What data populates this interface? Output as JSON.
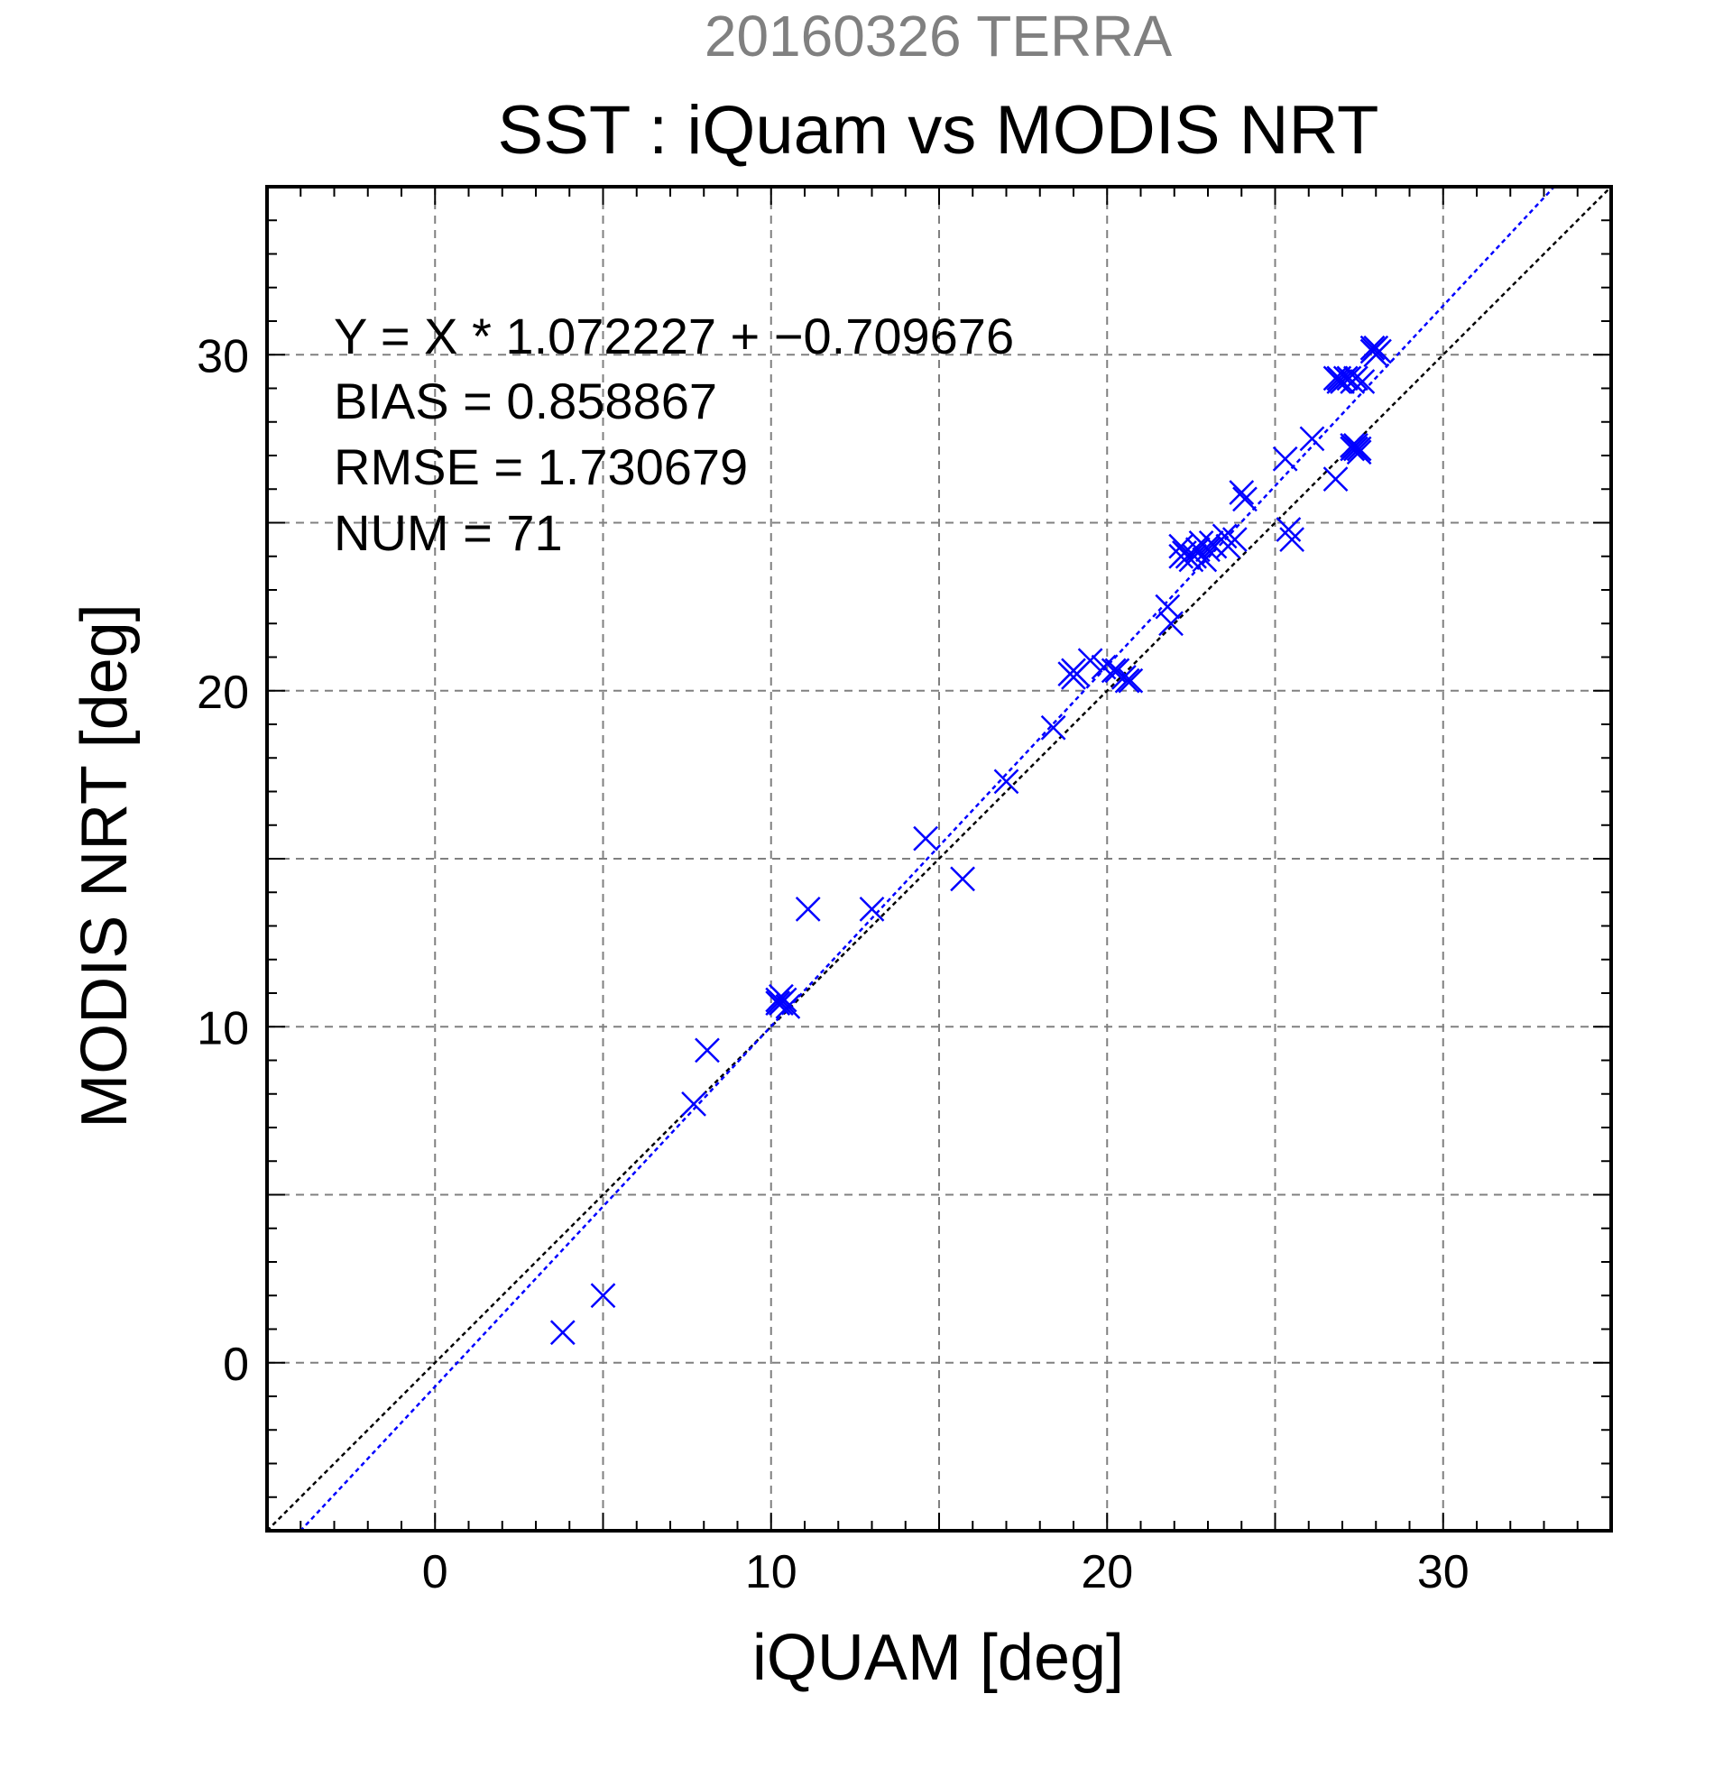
{
  "chart_data": {
    "type": "scatter",
    "subtitle": "20160326 TERRA",
    "title": "SST : iQuam vs MODIS NRT",
    "xlabel": "iQUAM [deg]",
    "ylabel": "MODIS NRT [deg]",
    "xlim": [
      -5,
      35
    ],
    "ylim": [
      -5,
      35
    ],
    "xticks": [
      0,
      10,
      20,
      30
    ],
    "yticks": [
      0,
      10,
      20,
      30
    ],
    "minor_step": 1,
    "grid": true,
    "stats": {
      "line1": "Y = X * 1.072227 + −0.709676",
      "line2": "BIAS = 0.858867",
      "line3": "RMSE = 1.730679",
      "line4": "NUM = 71"
    },
    "regression": {
      "slope": 1.072227,
      "intercept": -0.709676,
      "color": "#0000ff"
    },
    "identity_line": {
      "slope": 1,
      "intercept": 0,
      "color": "#000000"
    },
    "marker_color": "#0000ff",
    "points": [
      {
        "x": 3.8,
        "y": 0.9
      },
      {
        "x": 5.0,
        "y": 2.0
      },
      {
        "x": 7.7,
        "y": 7.7
      },
      {
        "x": 8.1,
        "y": 9.3
      },
      {
        "x": 10.2,
        "y": 10.8
      },
      {
        "x": 10.3,
        "y": 10.7
      },
      {
        "x": 10.4,
        "y": 10.8
      },
      {
        "x": 10.2,
        "y": 10.7
      },
      {
        "x": 10.5,
        "y": 10.6
      },
      {
        "x": 11.1,
        "y": 13.5
      },
      {
        "x": 13.0,
        "y": 13.5
      },
      {
        "x": 14.6,
        "y": 15.6
      },
      {
        "x": 15.7,
        "y": 14.4
      },
      {
        "x": 17.0,
        "y": 17.3
      },
      {
        "x": 18.4,
        "y": 18.9
      },
      {
        "x": 18.9,
        "y": 20.5
      },
      {
        "x": 19.0,
        "y": 20.4
      },
      {
        "x": 19.1,
        "y": 20.5
      },
      {
        "x": 19.5,
        "y": 20.9
      },
      {
        "x": 19.9,
        "y": 20.7
      },
      {
        "x": 20.2,
        "y": 20.6
      },
      {
        "x": 20.3,
        "y": 20.6
      },
      {
        "x": 20.6,
        "y": 20.3
      },
      {
        "x": 20.7,
        "y": 20.3
      },
      {
        "x": 21.8,
        "y": 22.5
      },
      {
        "x": 21.9,
        "y": 22.0
      },
      {
        "x": 22.2,
        "y": 24.0
      },
      {
        "x": 22.2,
        "y": 24.3
      },
      {
        "x": 22.4,
        "y": 24.0
      },
      {
        "x": 22.6,
        "y": 24.0
      },
      {
        "x": 22.7,
        "y": 24.2
      },
      {
        "x": 22.8,
        "y": 24.4
      },
      {
        "x": 22.9,
        "y": 23.9
      },
      {
        "x": 23.1,
        "y": 24.4
      },
      {
        "x": 23.2,
        "y": 24.3
      },
      {
        "x": 23.5,
        "y": 24.6
      },
      {
        "x": 23.6,
        "y": 24.3
      },
      {
        "x": 23.8,
        "y": 24.5
      },
      {
        "x": 24.0,
        "y": 25.9
      },
      {
        "x": 24.1,
        "y": 25.7
      },
      {
        "x": 25.3,
        "y": 26.9
      },
      {
        "x": 25.4,
        "y": 24.8
      },
      {
        "x": 25.5,
        "y": 24.5
      },
      {
        "x": 26.1,
        "y": 27.5
      },
      {
        "x": 26.8,
        "y": 26.3
      },
      {
        "x": 26.8,
        "y": 29.3
      },
      {
        "x": 26.9,
        "y": 29.3
      },
      {
        "x": 27.0,
        "y": 29.2
      },
      {
        "x": 27.1,
        "y": 29.3
      },
      {
        "x": 27.2,
        "y": 29.3
      },
      {
        "x": 27.3,
        "y": 29.2
      },
      {
        "x": 27.4,
        "y": 29.3
      },
      {
        "x": 27.6,
        "y": 29.2
      },
      {
        "x": 27.3,
        "y": 27.2
      },
      {
        "x": 27.4,
        "y": 27.2
      },
      {
        "x": 27.5,
        "y": 27.1
      },
      {
        "x": 27.4,
        "y": 27.3
      },
      {
        "x": 27.5,
        "y": 27.2
      },
      {
        "x": 27.9,
        "y": 30.1
      },
      {
        "x": 28.0,
        "y": 30.2
      },
      {
        "x": 28.1,
        "y": 30.1
      },
      {
        "x": 27.9,
        "y": 30.2
      },
      {
        "x": 28.0,
        "y": 30.0
      },
      {
        "x": 22.3,
        "y": 24.1
      },
      {
        "x": 22.5,
        "y": 23.9
      },
      {
        "x": 19.0,
        "y": 20.6
      },
      {
        "x": 20.5,
        "y": 20.4
      },
      {
        "x": 10.3,
        "y": 10.9
      },
      {
        "x": 23.0,
        "y": 24.2
      },
      {
        "x": 26.9,
        "y": 29.2
      },
      {
        "x": 27.3,
        "y": 27.3
      }
    ]
  }
}
